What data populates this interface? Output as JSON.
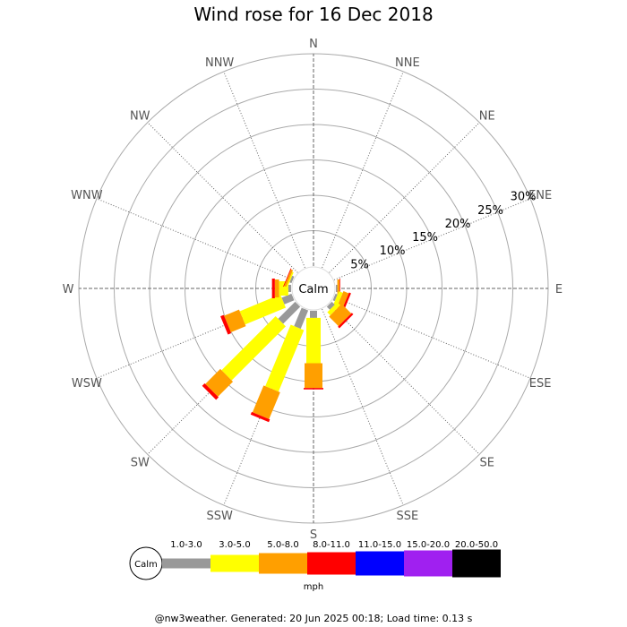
{
  "page": {
    "title": "Wind rose for 16 Dec 2018",
    "footer": "@nw3weather. Generated: 20 Jun 2025 00:18; Load time: 0.13 s"
  },
  "chart_data": {
    "type": "wind-rose",
    "title": "Wind rose for 16 Dec 2018",
    "directions": [
      "N",
      "NNE",
      "NE",
      "ENE",
      "E",
      "ESE",
      "SE",
      "SSE",
      "S",
      "SSW",
      "SW",
      "WSW",
      "W",
      "WNW",
      "NW",
      "NNW"
    ],
    "radial_ticks": [
      "5%",
      "10%",
      "15%",
      "20%",
      "25%",
      "30%"
    ],
    "radial_tick_values": [
      5,
      10,
      15,
      20,
      25,
      30
    ],
    "radial_max": 30,
    "calm_label": "Calm",
    "units_label": "mph",
    "bins": [
      {
        "name": "1.0-3.0",
        "color": "#999999"
      },
      {
        "name": "3.0-5.0",
        "color": "#ffff00"
      },
      {
        "name": "5.0-8.0",
        "color": "#ff9f00"
      },
      {
        "name": "8.0-11.0",
        "color": "#ff0000"
      },
      {
        "name": "11.0-15.0",
        "color": "#0000ff"
      },
      {
        "name": "15.0-20.0",
        "color": "#a020f0"
      },
      {
        "name": "20.0-50.0",
        "color": "#000000"
      }
    ],
    "series": [
      {
        "direction": "N",
        "values": [
          0,
          0,
          0,
          0,
          0,
          0,
          0
        ]
      },
      {
        "direction": "NNE",
        "values": [
          0,
          0,
          0,
          0,
          0,
          0,
          0
        ]
      },
      {
        "direction": "NE",
        "values": [
          0,
          0,
          0,
          0,
          0,
          0,
          0
        ]
      },
      {
        "direction": "ENE",
        "values": [
          0,
          0,
          0,
          0,
          0,
          0,
          0
        ]
      },
      {
        "direction": "E",
        "values": [
          0.2,
          0,
          0.3,
          0.1,
          0,
          0,
          0
        ]
      },
      {
        "direction": "ESE",
        "values": [
          0.3,
          0.6,
          0.8,
          0.3,
          0,
          0,
          0
        ]
      },
      {
        "direction": "SE",
        "values": [
          0.6,
          0.6,
          1.9,
          0.3,
          0,
          0,
          0
        ]
      },
      {
        "direction": "SSE",
        "values": [
          0,
          0,
          0,
          0,
          0,
          0,
          0
        ]
      },
      {
        "direction": "S",
        "values": [
          1.0,
          6.4,
          3.5,
          0.2,
          0,
          0,
          0
        ]
      },
      {
        "direction": "SSW",
        "values": [
          2.8,
          9.4,
          4.1,
          0.4,
          0,
          0,
          0
        ]
      },
      {
        "direction": "SW",
        "values": [
          3.4,
          10.8,
          3.0,
          0.5,
          0,
          0,
          0
        ]
      },
      {
        "direction": "WSW",
        "values": [
          1.5,
          6.2,
          2.3,
          0.5,
          0,
          0,
          0
        ]
      },
      {
        "direction": "W",
        "values": [
          0.4,
          1.3,
          0.6,
          0.4,
          0,
          0,
          0
        ]
      },
      {
        "direction": "WNW",
        "values": [
          0.3,
          0.2,
          0.3,
          0.1,
          0,
          0,
          0
        ]
      },
      {
        "direction": "NW",
        "values": [
          0,
          0,
          0,
          0,
          0,
          0,
          0
        ]
      },
      {
        "direction": "NNW",
        "values": [
          0,
          0,
          0,
          0,
          0,
          0,
          0
        ]
      }
    ],
    "grid": true
  }
}
